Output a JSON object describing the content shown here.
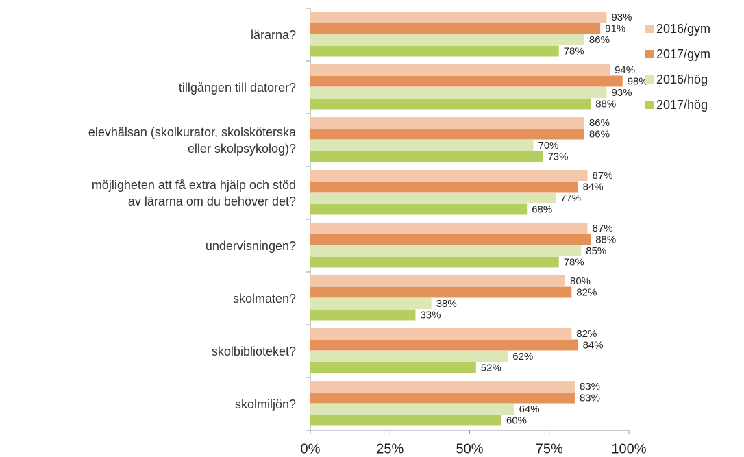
{
  "chart_data": {
    "type": "bar",
    "orientation": "horizontal",
    "categories": [
      "lärarna?",
      "tillgången till datorer?",
      "elevhälsan (skolkurator, skolsköterska\neller skolpsykolog)?",
      "möjligheten att få extra hjälp och stöd\nav lärarna om du behöver det?",
      "undervisningen?",
      "skolmaten?",
      "skolbiblioteket?",
      "skolmiljön?"
    ],
    "series": [
      {
        "name": "2016/gym",
        "color": "#f4c7ab",
        "values": [
          93,
          94,
          86,
          87,
          87,
          80,
          82,
          83
        ],
        "value_labels": [
          "93%",
          "94%",
          "86%",
          "87%",
          "87%",
          "80%",
          "82%",
          "83%"
        ]
      },
      {
        "name": "2017/gym",
        "color": "#e5925a",
        "values": [
          91,
          98,
          86,
          84,
          88,
          82,
          84,
          83
        ],
        "value_labels": [
          "91%",
          "98%",
          "86%",
          "84%",
          "88%",
          "82%",
          "84%",
          "83%"
        ]
      },
      {
        "name": "2016/hög",
        "color": "#dbe8b5",
        "values": [
          86,
          93,
          70,
          77,
          85,
          38,
          62,
          64
        ],
        "value_labels": [
          "86%",
          "93%",
          "70%",
          "77%",
          "85%",
          "38%",
          "62%",
          "64%"
        ]
      },
      {
        "name": "2017/hög",
        "color": "#b5cf5e",
        "values": [
          78,
          88,
          73,
          68,
          78,
          33,
          52,
          60
        ],
        "value_labels": [
          "78%",
          "88%",
          "73%",
          "68%",
          "78%",
          "33%",
          "52%",
          "60%"
        ]
      }
    ],
    "xlim": [
      0,
      100
    ],
    "xticks": [
      {
        "value": 0,
        "label": "0%"
      },
      {
        "value": 25,
        "label": "25%"
      },
      {
        "value": 50,
        "label": "50%"
      },
      {
        "value": 75,
        "label": "75%"
      },
      {
        "value": 100,
        "label": "100%"
      }
    ],
    "legend": "right",
    "grid": false
  }
}
